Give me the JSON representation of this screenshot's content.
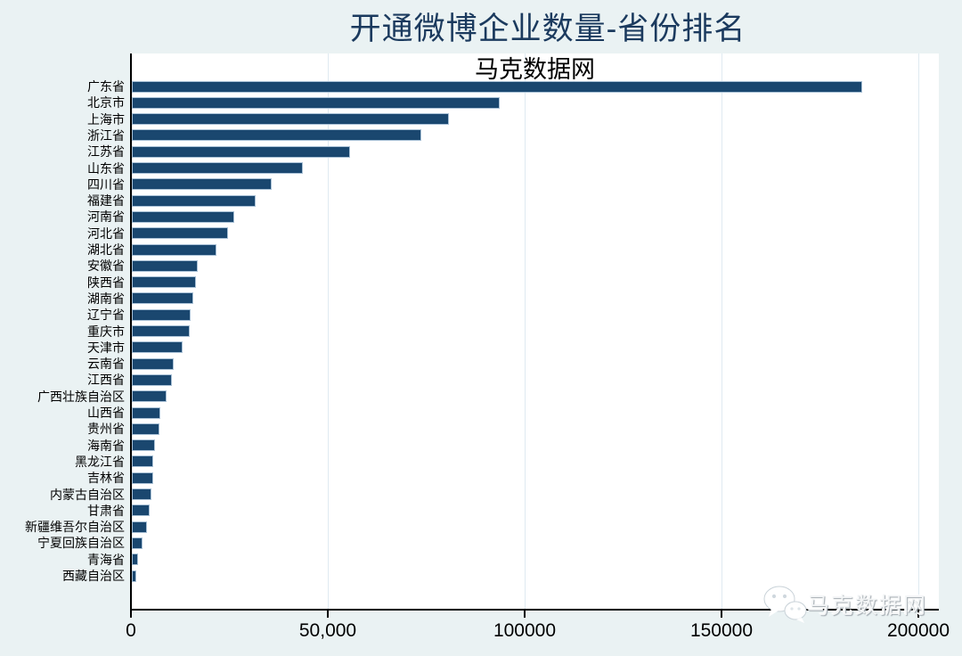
{
  "chart_data": {
    "type": "bar",
    "orientation": "horizontal",
    "title": "开通微博企业数量-省份排名",
    "subtitle": "马克数据网",
    "categories": [
      "广东省",
      "北京市",
      "上海市",
      "浙江省",
      "江苏省",
      "山东省",
      "四川省",
      "福建省",
      "河南省",
      "河北省",
      "湖北省",
      "安徽省",
      "陕西省",
      "湖南省",
      "辽宁省",
      "重庆市",
      "天津市",
      "云南省",
      "江西省",
      "广西壮族自治区",
      "山西省",
      "贵州省",
      "海南省",
      "黑龙江省",
      "吉林省",
      "内蒙古自治区",
      "甘肃省",
      "新疆维吾尔自治区",
      "宁夏回族自治区",
      "青海省",
      "西藏自治区"
    ],
    "values": [
      185000,
      93000,
      80000,
      73000,
      55000,
      43000,
      35000,
      31000,
      25500,
      24000,
      21000,
      16300,
      15800,
      15200,
      14500,
      14200,
      12400,
      10200,
      9700,
      8400,
      6800,
      6600,
      5400,
      5000,
      5000,
      4500,
      4100,
      3400,
      2300,
      1100,
      700
    ],
    "xlim": [
      0,
      200000
    ],
    "x_ticks": [
      {
        "value": 0,
        "label": "0"
      },
      {
        "value": 50000,
        "label": "50,000"
      },
      {
        "value": 100000,
        "label": "100000"
      },
      {
        "value": 150000,
        "label": "150000"
      },
      {
        "value": 200000,
        "label": "200000"
      }
    ],
    "grid": true,
    "legend": "none",
    "colors": {
      "bar": "#1a476f",
      "bar_outline": "#a9c1d6",
      "background": "#eaf2f3",
      "plot_background": "#ffffff",
      "gridline": "#dfeaf1",
      "title_text": "#1b3a5e",
      "axis_text": "#000000"
    }
  },
  "watermark": {
    "icon": "wechat-icon",
    "text": "马克数据网"
  }
}
